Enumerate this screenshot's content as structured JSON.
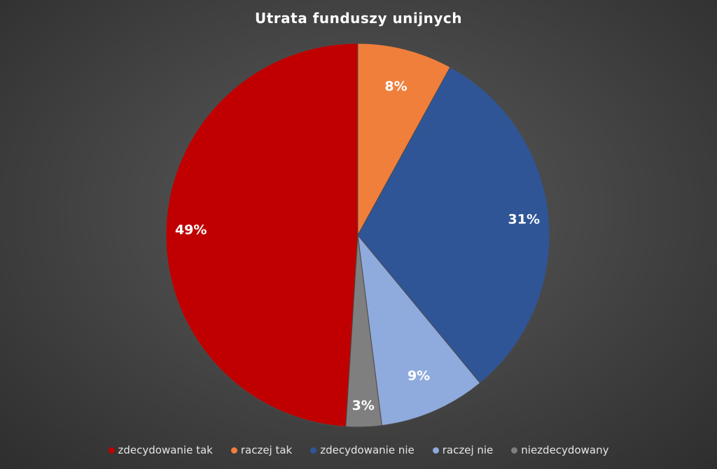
{
  "chart_data": {
    "type": "pie",
    "title": "Utrata funduszy unijnych",
    "categories": [
      "zdecydowanie tak",
      "raczej tak",
      "zdecydowanie nie",
      "raczej nie",
      "niezdecydowany"
    ],
    "values": [
      49,
      8,
      31,
      9,
      3
    ],
    "labels": [
      "49%",
      "8%",
      "31%",
      "9%",
      "3%"
    ],
    "slice_order_clockwise_from_top": [
      "raczej tak",
      "zdecydowanie nie",
      "raczej nie",
      "niezdecydowany",
      "zdecydowanie tak"
    ],
    "colors": {
      "zdecydowanie tak": "#c00000",
      "raczej tak": "#f07f3c",
      "zdecydowanie nie": "#2f5597",
      "raczej nie": "#8faadc",
      "niezdecydowany": "#7f7f7f"
    },
    "legend_position": "bottom",
    "data_labels": "inside",
    "background": "#3f3f3f"
  }
}
